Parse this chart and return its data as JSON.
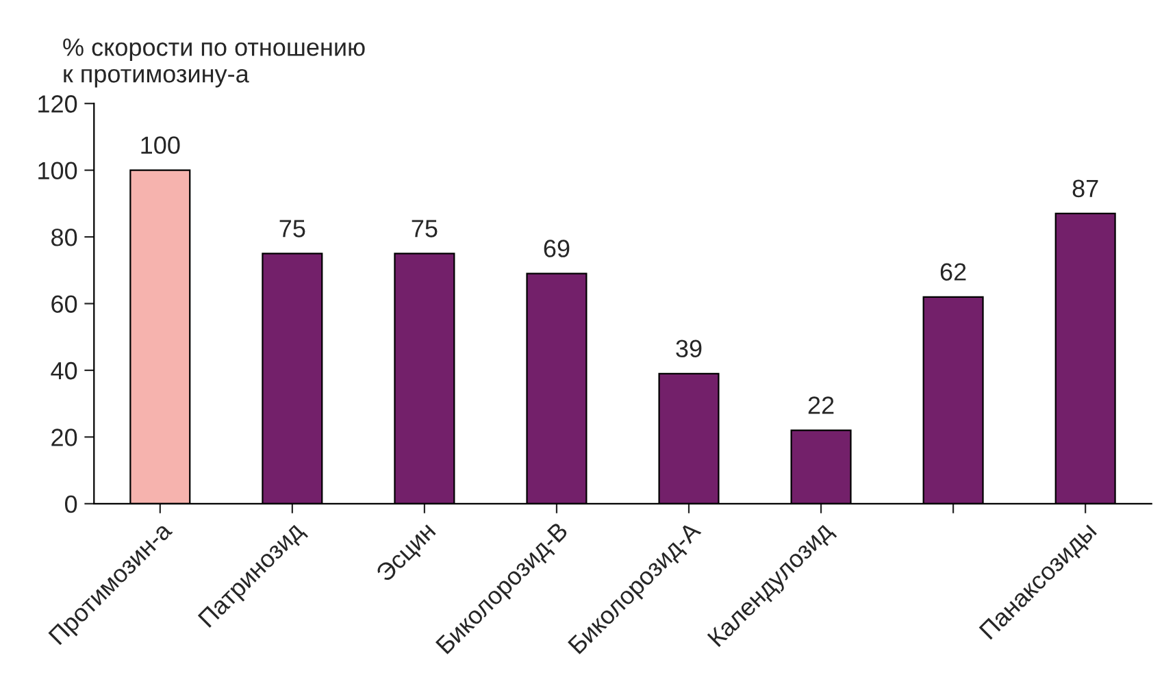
{
  "chart_data": {
    "type": "bar",
    "ylabel": "% скорости по отношению\nк протимозину-а",
    "categories": [
      "Протимозин-а",
      "Патринозид",
      "Эсцин",
      "Биколорозид-В",
      "Биколорозид-А",
      "Календулозид",
      null,
      "Панаксозиды"
    ],
    "values": [
      100,
      75,
      75,
      69,
      39,
      22,
      62,
      87
    ],
    "colors": [
      "#f6b3ae",
      "#73206a",
      "#73206a",
      "#73206a",
      "#73206a",
      "#73206a",
      "#73206a",
      "#73206a"
    ],
    "ylim": [
      0,
      120
    ],
    "yticks": [
      0,
      20,
      40,
      60,
      80,
      100,
      120
    ],
    "data_labels": true,
    "grid": false,
    "legend": false
  }
}
